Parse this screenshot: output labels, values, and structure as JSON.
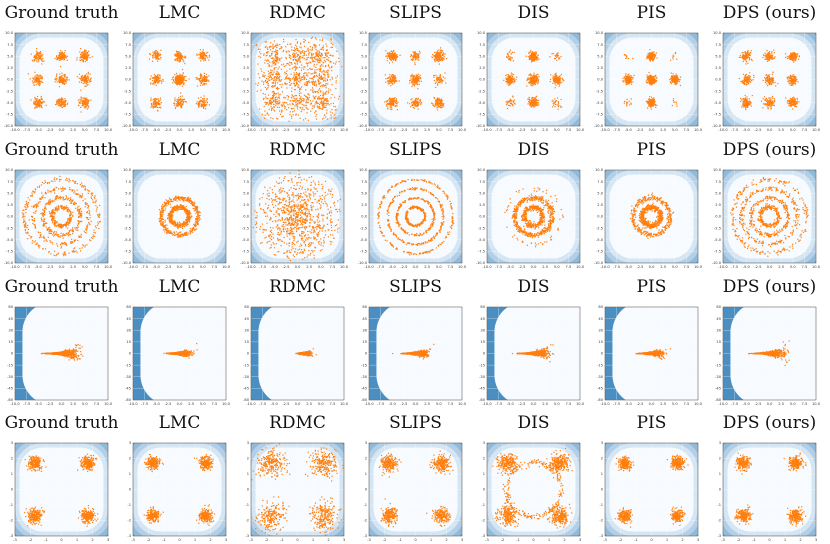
{
  "figure": {
    "columns": [
      "Ground truth",
      "LMC",
      "RDMC",
      "SLIPS",
      "DIS",
      "PIS",
      "DPS (ours)"
    ],
    "colors": {
      "samples": "#ff7f0e",
      "density_low": "#f7fbff",
      "density_high": "#4a8ec2",
      "grid": "#ffffff"
    }
  },
  "chart_data": [
    {
      "type": "scatter",
      "row": 1,
      "target": "grid of 9 Gaussian modes",
      "panels": [
        "Ground truth",
        "LMC",
        "RDMC",
        "SLIPS",
        "DIS",
        "PIS",
        "DPS (ours)"
      ],
      "xlim": [
        -10,
        10
      ],
      "ylim": [
        -10,
        10
      ],
      "x_ticks": [
        "-10.0",
        "-7.5",
        "-5.0",
        "-2.5",
        "0.0",
        "2.5",
        "5.0",
        "7.5",
        "10.0"
      ],
      "y_ticks": [
        "10.0",
        "7.5",
        "5.0",
        "2.5",
        "0.0",
        "-2.5",
        "-5.0",
        "-7.5",
        "-10.0"
      ],
      "modes": [
        [
          -5,
          5
        ],
        [
          0,
          5
        ],
        [
          5,
          5
        ],
        [
          -5,
          0
        ],
        [
          0,
          0
        ],
        [
          5,
          0
        ],
        [
          -5,
          -5
        ],
        [
          0,
          -5
        ],
        [
          5,
          -5
        ]
      ],
      "mode_std": 0.5
    },
    {
      "type": "scatter",
      "row": 2,
      "target": "concentric rings",
      "panels": [
        "Ground truth",
        "LMC",
        "RDMC",
        "SLIPS",
        "DIS",
        "PIS",
        "DPS (ours)"
      ],
      "xlim": [
        -10,
        10
      ],
      "ylim": [
        -10,
        10
      ],
      "x_ticks": [
        "-10.0",
        "-7.5",
        "-5.0",
        "-2.5",
        "0.0",
        "2.5",
        "5.0",
        "7.5",
        "10.0"
      ],
      "y_ticks": [
        "10.0",
        "7.5",
        "5.0",
        "2.5",
        "0.0",
        "-2.5",
        "-5.0",
        "-7.5",
        "-10.0"
      ],
      "ring_radii": [
        2,
        4,
        6,
        8
      ]
    },
    {
      "type": "scatter",
      "row": 3,
      "target": "funnel",
      "panels": [
        "Ground truth",
        "LMC",
        "RDMC",
        "SLIPS",
        "DIS",
        "PIS",
        "DPS (ours)"
      ],
      "xlim": [
        -10,
        10
      ],
      "ylim": [
        -60,
        60
      ],
      "x_ticks": [
        "-10.0",
        "-7.5",
        "-5.0",
        "-2.5",
        "0.0",
        "2.5",
        "5.0",
        "7.5",
        "10.0"
      ],
      "y_ticks": [
        "60",
        "45",
        "30",
        "15",
        "0",
        "-15",
        "-30",
        "-45",
        "-60"
      ]
    },
    {
      "type": "scatter",
      "row": 4,
      "target": "four modes at corners",
      "panels": [
        "Ground truth",
        "LMC",
        "RDMC",
        "SLIPS",
        "DIS",
        "PIS",
        "DPS (ours)"
      ],
      "xlim": [
        -3,
        3
      ],
      "ylim": [
        -3,
        3
      ],
      "x_ticks": [
        "-3",
        "-2",
        "-1",
        "0",
        "1",
        "2",
        "3"
      ],
      "y_ticks": [
        "3",
        "2",
        "1",
        "0",
        "-1",
        "-2",
        "-3"
      ],
      "modes": [
        [
          -1.7,
          1.7
        ],
        [
          1.7,
          1.7
        ],
        [
          -1.7,
          -1.7
        ],
        [
          1.7,
          -1.7
        ]
      ]
    }
  ]
}
